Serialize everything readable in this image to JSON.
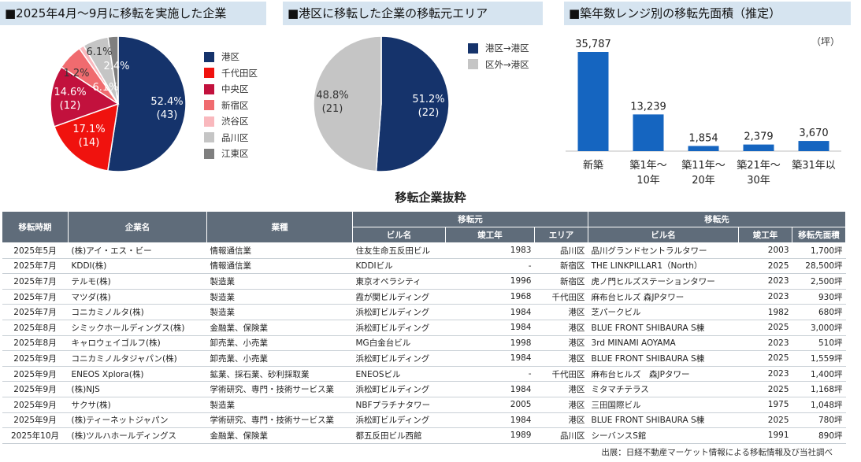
{
  "panel1": {
    "title": "■2025年4月～9月に移転を実施した企業",
    "slices": [
      {
        "name": "港区",
        "pct": 52.4,
        "pct_label": "52.4%",
        "count_label": "(43)",
        "color": "#15336b"
      },
      {
        "name": "千代田区",
        "pct": 17.1,
        "pct_label": "17.1%",
        "count_label": "(14)",
        "color": "#f0120e"
      },
      {
        "name": "中央区",
        "pct": 14.6,
        "pct_label": "14.6%",
        "count_label": "(12)",
        "color": "#c2113d"
      },
      {
        "name": "新宿区",
        "pct": 6.1,
        "pct_label": "6.1%",
        "count_label": "",
        "color": "#f06b6f"
      },
      {
        "name": "渋谷区",
        "pct": 1.2,
        "pct_label": "1.2%",
        "count_label": "",
        "color": "#f9b8bd"
      },
      {
        "name": "品川区",
        "pct": 6.1,
        "pct_label": "6.1%",
        "count_label": "",
        "color": "#c5c5c5"
      },
      {
        "name": "江東区",
        "pct": 2.4,
        "pct_label": "2.4%",
        "count_label": "",
        "color": "#7f7f7f"
      }
    ]
  },
  "panel2": {
    "title": "■港区に移転した企業の移転元エリア",
    "slices": [
      {
        "name": "港区→港区",
        "pct": 51.2,
        "pct_label": "51.2%",
        "count_label": "(22)",
        "color": "#15336b"
      },
      {
        "name": "区外→港区",
        "pct": 48.8,
        "pct_label": "48.8%",
        "count_label": "(21)",
        "color": "#c5c5c5"
      }
    ]
  },
  "panel3": {
    "title": "■築年数レンジ別の移転先面積（推定）",
    "unit": "（坪）",
    "bar_color": "#1565c0",
    "categories": [
      {
        "line1": "新築",
        "line2": ""
      },
      {
        "line1": "築1年～",
        "line2": "10年"
      },
      {
        "line1": "築11年～",
        "line2": "20年"
      },
      {
        "line1": "築21年～",
        "line2": "30年"
      },
      {
        "line1": "築31年以",
        "line2": ""
      }
    ],
    "values": [
      35787,
      13239,
      1854,
      2379,
      3670
    ],
    "value_labels": [
      "35,787",
      "13,239",
      "1,854",
      "2,379",
      "3,670"
    ]
  },
  "chart_data": [
    {
      "type": "pie",
      "title": "■2025年4月～9月に移転を実施した企業",
      "categories": [
        "港区",
        "千代田区",
        "中央区",
        "新宿区",
        "渋谷区",
        "品川区",
        "江東区"
      ],
      "values": [
        52.4,
        17.1,
        14.6,
        6.1,
        1.2,
        6.1,
        2.4
      ],
      "counts": [
        43,
        14,
        12,
        null,
        null,
        null,
        null
      ]
    },
    {
      "type": "pie",
      "title": "■港区に移転した企業の移転元エリア",
      "categories": [
        "港区→港区",
        "区外→港区"
      ],
      "values": [
        51.2,
        48.8
      ],
      "counts": [
        22,
        21
      ]
    },
    {
      "type": "bar",
      "title": "■築年数レンジ別の移転先面積（推定）",
      "categories": [
        "新築",
        "築1年～10年",
        "築11年～20年",
        "築21年～30年",
        "築31年以"
      ],
      "values": [
        35787,
        13239,
        1854,
        2379,
        3670
      ],
      "ylabel": "（坪）"
    }
  ],
  "table": {
    "title": "移転企業抜粋",
    "headers": {
      "date": "移転時期",
      "company": "企業名",
      "industry": "業種",
      "from_group": "移転元",
      "to_group": "移転先",
      "from_building": "ビル名",
      "from_year": "竣工年",
      "from_area": "エリア",
      "to_building": "ビル名",
      "to_year": "竣工年",
      "to_size": "移転先面積"
    },
    "rows": [
      [
        "2025年5月",
        "(株)アイ・エス・ビー",
        "情報通信業",
        "住友生命五反田ビル",
        "1983",
        "品川区",
        "品川グランドセントラルタワー",
        "2003",
        "1,700坪"
      ],
      [
        "2025年7月",
        "KDDI(株)",
        "情報通信業",
        "KDDIビル",
        "-",
        "新宿区",
        "THE LINKPILLAR1（North）",
        "2025",
        "28,500坪"
      ],
      [
        "2025年7月",
        "テルモ(株)",
        "製造業",
        "東京オペラシティ",
        "1996",
        "新宿区",
        "虎ノ門ヒルズステーションタワー",
        "2023",
        "2,500坪"
      ],
      [
        "2025年7月",
        "マツダ(株)",
        "製造業",
        "霞が関ビルディング",
        "1968",
        "千代田区",
        "麻布台ヒルズ 森JPタワー",
        "2023",
        "930坪"
      ],
      [
        "2025年7月",
        "コニカミノルタ(株)",
        "製造業",
        "浜松町ビルディング",
        "1984",
        "港区",
        "芝パークビル",
        "1982",
        "680坪"
      ],
      [
        "2025年8月",
        "シミックホールディングス(株)",
        "金融業、保険業",
        "浜松町ビルディング",
        "1984",
        "港区",
        "BLUE FRONT SHIBAURA S棟",
        "2025",
        "3,000坪"
      ],
      [
        "2025年8月",
        "キャロウェイゴルフ(株)",
        "卸売業、小売業",
        "MG白金台ビル",
        "1998",
        "港区",
        "3rd MINAMI AOYAMA",
        "2023",
        "510坪"
      ],
      [
        "2025年9月",
        "コニカミノルタジャパン(株)",
        "卸売業、小売業",
        "浜松町ビルディング",
        "1984",
        "港区",
        "BLUE FRONT SHIBAURA S棟",
        "2025",
        "1,559坪"
      ],
      [
        "2025年9月",
        "ENEOS Xplora(株)",
        "鉱業、採石業、砂利採取業",
        "ENEOSビル",
        "-",
        "千代田区",
        "麻布台ヒルズ　森JPタワー",
        "2023",
        "1,400坪"
      ],
      [
        "2025年9月",
        "(株)NJS",
        "学術研究、専門・技術サービス業",
        "浜松町ビルディング",
        "1984",
        "港区",
        "ミタマチテラス",
        "2025",
        "1,168坪"
      ],
      [
        "2025年9月",
        "サクサ(株)",
        "製造業",
        "NBFプラチナタワー",
        "2005",
        "港区",
        "三田国際ビル",
        "1975",
        "1,048坪"
      ],
      [
        "2025年9月",
        "(株)ティーネットジャパン",
        "学術研究、専門・技術サービス業",
        "浜松町ビルディング",
        "1984",
        "港区",
        "BLUE FRONT SHIBAURA S棟",
        "2025",
        "780坪"
      ],
      [
        "2025年10月",
        "(株)ツルハホールディングス",
        "金融業、保険業",
        "都五反田ビル西館",
        "1989",
        "品川区",
        "シーバンスS館",
        "1991",
        "890坪"
      ]
    ]
  },
  "source": "出展：日経不動産マーケット情報による移転情報及び当社調べ"
}
